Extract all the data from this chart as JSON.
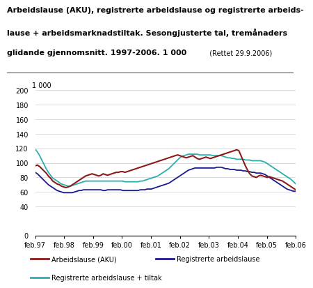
{
  "title_line1": "Arbeidslause (AKU), registrerte arbeidslause og registrerte arbeids-",
  "title_line2": "lause + arbeidsmarknadstiltak. Sesongjusterte tal, tremånaders",
  "title_line3": "glidande gjennomsnitt. 1997-2006. 1 000",
  "title_note": "(Rettet 29.9.2006)",
  "ylabel_top": "1 000",
  "ylim": [
    0,
    200
  ],
  "yticks": [
    0,
    40,
    60,
    80,
    100,
    120,
    140,
    160,
    180,
    200
  ],
  "xtick_labels": [
    "feb.97",
    "feb.98",
    "feb.99",
    "feb.00",
    "feb.01",
    "feb.02",
    "feb.03",
    "feb.04",
    "feb.05",
    "feb.06"
  ],
  "color_aku": "#8B1A1A",
  "color_reg": "#1a1a8c",
  "color_tiltak": "#2aadad",
  "aku": [
    96,
    97,
    95,
    92,
    89,
    86,
    82,
    79,
    75,
    73,
    71,
    70,
    68,
    67,
    66,
    67,
    68,
    70,
    72,
    74,
    76,
    78,
    80,
    82,
    83,
    84,
    85,
    84,
    83,
    82,
    83,
    85,
    84,
    83,
    84,
    85,
    86,
    87,
    87,
    88,
    88,
    87,
    88,
    89,
    90,
    91,
    92,
    93,
    94,
    95,
    96,
    97,
    98,
    99,
    100,
    101,
    102,
    103,
    104,
    105,
    106,
    107,
    108,
    109,
    110,
    111,
    110,
    109,
    108,
    107,
    108,
    109,
    110,
    108,
    106,
    105,
    106,
    107,
    108,
    107,
    106,
    107,
    108,
    109,
    110,
    111,
    112,
    113,
    114,
    115,
    116,
    117,
    118,
    117,
    110,
    103,
    96,
    90,
    85,
    82,
    81,
    80,
    82,
    83,
    82,
    81,
    80,
    81,
    80,
    79,
    78,
    77,
    76,
    75,
    73,
    71,
    69,
    67,
    65,
    63
  ],
  "reg": [
    87,
    85,
    82,
    79,
    76,
    73,
    70,
    68,
    66,
    64,
    62,
    61,
    60,
    59,
    59,
    59,
    59,
    59,
    60,
    61,
    62,
    62,
    63,
    63,
    63,
    63,
    63,
    63,
    63,
    63,
    63,
    62,
    62,
    63,
    63,
    63,
    63,
    63,
    63,
    63,
    62,
    62,
    62,
    62,
    62,
    62,
    62,
    62,
    63,
    63,
    63,
    64,
    64,
    64,
    65,
    66,
    67,
    68,
    69,
    70,
    71,
    72,
    74,
    76,
    78,
    80,
    82,
    84,
    86,
    88,
    90,
    91,
    92,
    93,
    93,
    93,
    93,
    93,
    93,
    93,
    93,
    93,
    93,
    94,
    94,
    94,
    93,
    92,
    92,
    91,
    91,
    91,
    90,
    90,
    90,
    89,
    89,
    88,
    88,
    87,
    87,
    86,
    86,
    86,
    85,
    84,
    82,
    80,
    78,
    76,
    74,
    72,
    70,
    68,
    66,
    64,
    63,
    62,
    61,
    61
  ],
  "tiltak": [
    119,
    115,
    110,
    104,
    98,
    92,
    87,
    83,
    79,
    77,
    75,
    73,
    71,
    70,
    69,
    68,
    68,
    69,
    70,
    71,
    72,
    73,
    74,
    75,
    75,
    75,
    75,
    75,
    75,
    75,
    75,
    75,
    75,
    75,
    75,
    75,
    75,
    75,
    75,
    75,
    75,
    74,
    74,
    74,
    74,
    74,
    74,
    74,
    75,
    75,
    76,
    77,
    78,
    79,
    80,
    81,
    82,
    84,
    86,
    88,
    90,
    92,
    95,
    98,
    101,
    104,
    107,
    109,
    110,
    111,
    112,
    112,
    112,
    112,
    112,
    111,
    111,
    111,
    111,
    111,
    111,
    110,
    110,
    110,
    110,
    110,
    109,
    108,
    107,
    107,
    106,
    106,
    105,
    105,
    105,
    105,
    104,
    104,
    104,
    103,
    103,
    103,
    103,
    103,
    102,
    101,
    99,
    97,
    95,
    93,
    91,
    89,
    87,
    85,
    83,
    81,
    79,
    77,
    74,
    71
  ]
}
